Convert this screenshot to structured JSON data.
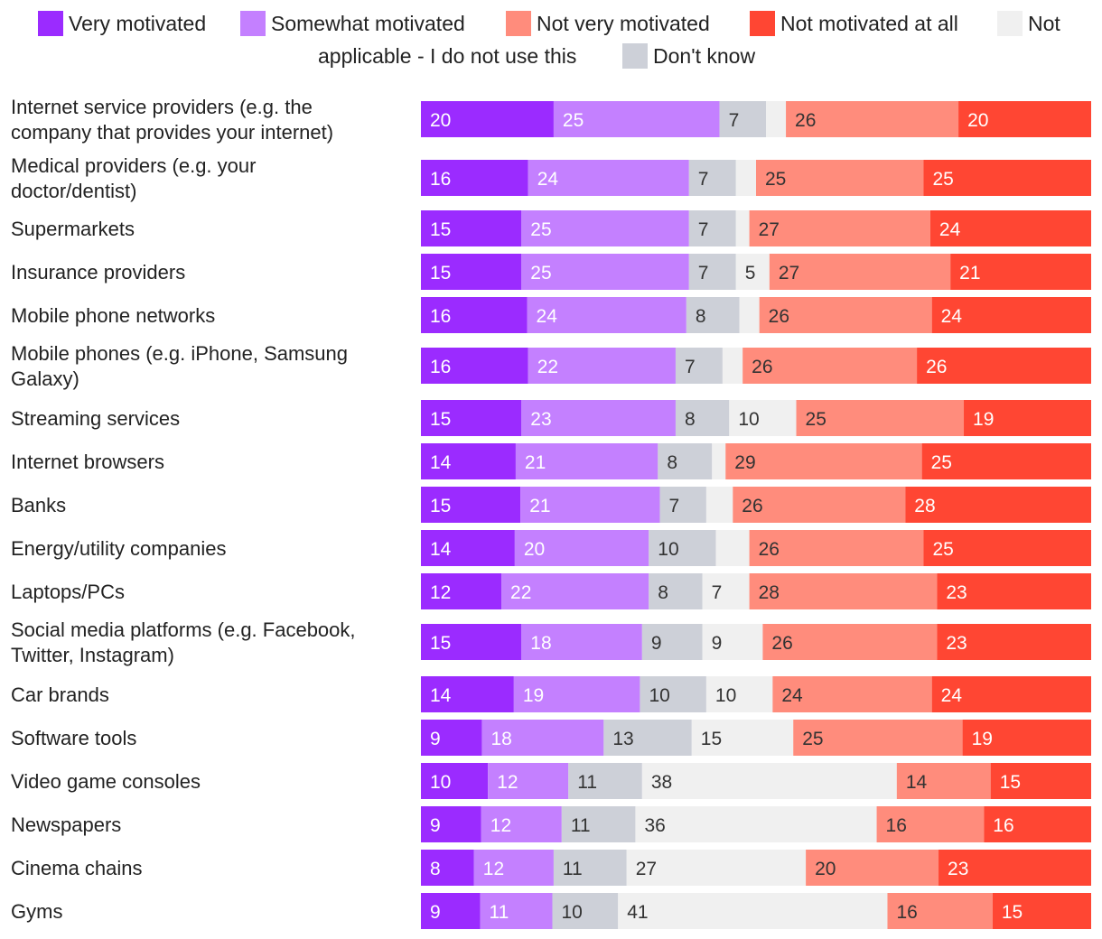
{
  "chart_data": {
    "type": "bar",
    "orientation": "horizontal",
    "stacked": true,
    "title": "",
    "xlabel": "",
    "ylabel": "",
    "legend_position": "top",
    "series": [
      {
        "name": "Very motivated",
        "color": "#9b2bff",
        "text_color": "#ffffff",
        "values": [
          20,
          16,
          15,
          15,
          16,
          16,
          15,
          14,
          15,
          14,
          12,
          15,
          14,
          9,
          10,
          9,
          8,
          9
        ]
      },
      {
        "name": "Somewhat motivated",
        "color": "#c480ff",
        "text_color": "#ffffff",
        "values": [
          25,
          24,
          25,
          25,
          24,
          22,
          23,
          21,
          21,
          20,
          22,
          18,
          19,
          18,
          12,
          12,
          12,
          11
        ]
      },
      {
        "name": "Don't know",
        "color": "#cdd0d8",
        "text_color": "#333333",
        "values": [
          7,
          7,
          7,
          7,
          8,
          7,
          8,
          8,
          7,
          10,
          8,
          9,
          10,
          13,
          11,
          11,
          11,
          10
        ]
      },
      {
        "name": "Not applicable - I do not use this",
        "color": "#f0f0f0",
        "text_color": "#333333",
        "values": [
          3,
          3,
          2,
          5,
          3,
          3,
          10,
          2,
          4,
          5,
          7,
          9,
          10,
          15,
          38,
          36,
          27,
          41
        ]
      },
      {
        "name": "Not very motivated",
        "color": "#ff8c7c",
        "text_color": "#333333",
        "values": [
          26,
          25,
          27,
          27,
          26,
          26,
          25,
          29,
          26,
          26,
          28,
          26,
          24,
          25,
          14,
          16,
          20,
          16
        ]
      },
      {
        "name": "Not motivated at all",
        "color": "#ff4633",
        "text_color": "#ffffff",
        "values": [
          20,
          25,
          24,
          21,
          24,
          26,
          19,
          25,
          28,
          25,
          23,
          23,
          24,
          19,
          15,
          16,
          23,
          15
        ]
      }
    ],
    "value_labels_shown": [
      [
        true,
        true,
        true,
        false,
        true,
        true
      ],
      [
        true,
        true,
        true,
        false,
        true,
        true
      ],
      [
        true,
        true,
        true,
        false,
        true,
        true
      ],
      [
        true,
        true,
        true,
        true,
        true,
        true
      ],
      [
        true,
        true,
        true,
        false,
        true,
        true
      ],
      [
        true,
        true,
        true,
        false,
        true,
        true
      ],
      [
        true,
        true,
        true,
        true,
        true,
        true
      ],
      [
        true,
        true,
        true,
        false,
        true,
        true
      ],
      [
        true,
        true,
        true,
        false,
        true,
        true
      ],
      [
        true,
        true,
        true,
        false,
        true,
        true
      ],
      [
        true,
        true,
        true,
        true,
        true,
        true
      ],
      [
        true,
        true,
        true,
        true,
        true,
        true
      ],
      [
        true,
        true,
        true,
        true,
        true,
        true
      ],
      [
        true,
        true,
        true,
        true,
        true,
        true
      ],
      [
        true,
        true,
        true,
        true,
        true,
        true
      ],
      [
        true,
        true,
        true,
        true,
        true,
        true
      ],
      [
        true,
        true,
        true,
        true,
        true,
        true
      ],
      [
        true,
        true,
        true,
        true,
        true,
        true
      ]
    ],
    "categories": [
      [
        "Internet service providers (e.g. the",
        "company that provides your internet)"
      ],
      [
        "Medical providers (e.g. your",
        "doctor/dentist)"
      ],
      [
        "Supermarkets"
      ],
      [
        "Insurance providers"
      ],
      [
        "Mobile phone networks"
      ],
      [
        "Mobile phones (e.g. iPhone, Samsung",
        "Galaxy)"
      ],
      [
        "Streaming services"
      ],
      [
        "Internet browsers"
      ],
      [
        "Banks"
      ],
      [
        "Energy/utility companies"
      ],
      [
        "Laptops/PCs"
      ],
      [
        "Social media platforms (e.g. Facebook,",
        "Twitter, Instagram)"
      ],
      [
        "Car brands"
      ],
      [
        "Software tools"
      ],
      [
        "Video game consoles"
      ],
      [
        "Newspapers"
      ],
      [
        "Cinema chains"
      ],
      [
        "Gyms"
      ]
    ],
    "legend": [
      {
        "label": "Very motivated",
        "color": "#9b2bff"
      },
      {
        "label": "Somewhat motivated",
        "color": "#c480ff"
      },
      {
        "label": "Not very motivated",
        "color": "#ff8c7c"
      },
      {
        "label": "Not motivated at all",
        "color": "#ff4633"
      },
      {
        "label": "Not",
        "label_line2": "applicable - I do not use this",
        "color": "#f0f0f0"
      },
      {
        "label": "Don't know",
        "color": "#cdd0d8"
      }
    ]
  }
}
